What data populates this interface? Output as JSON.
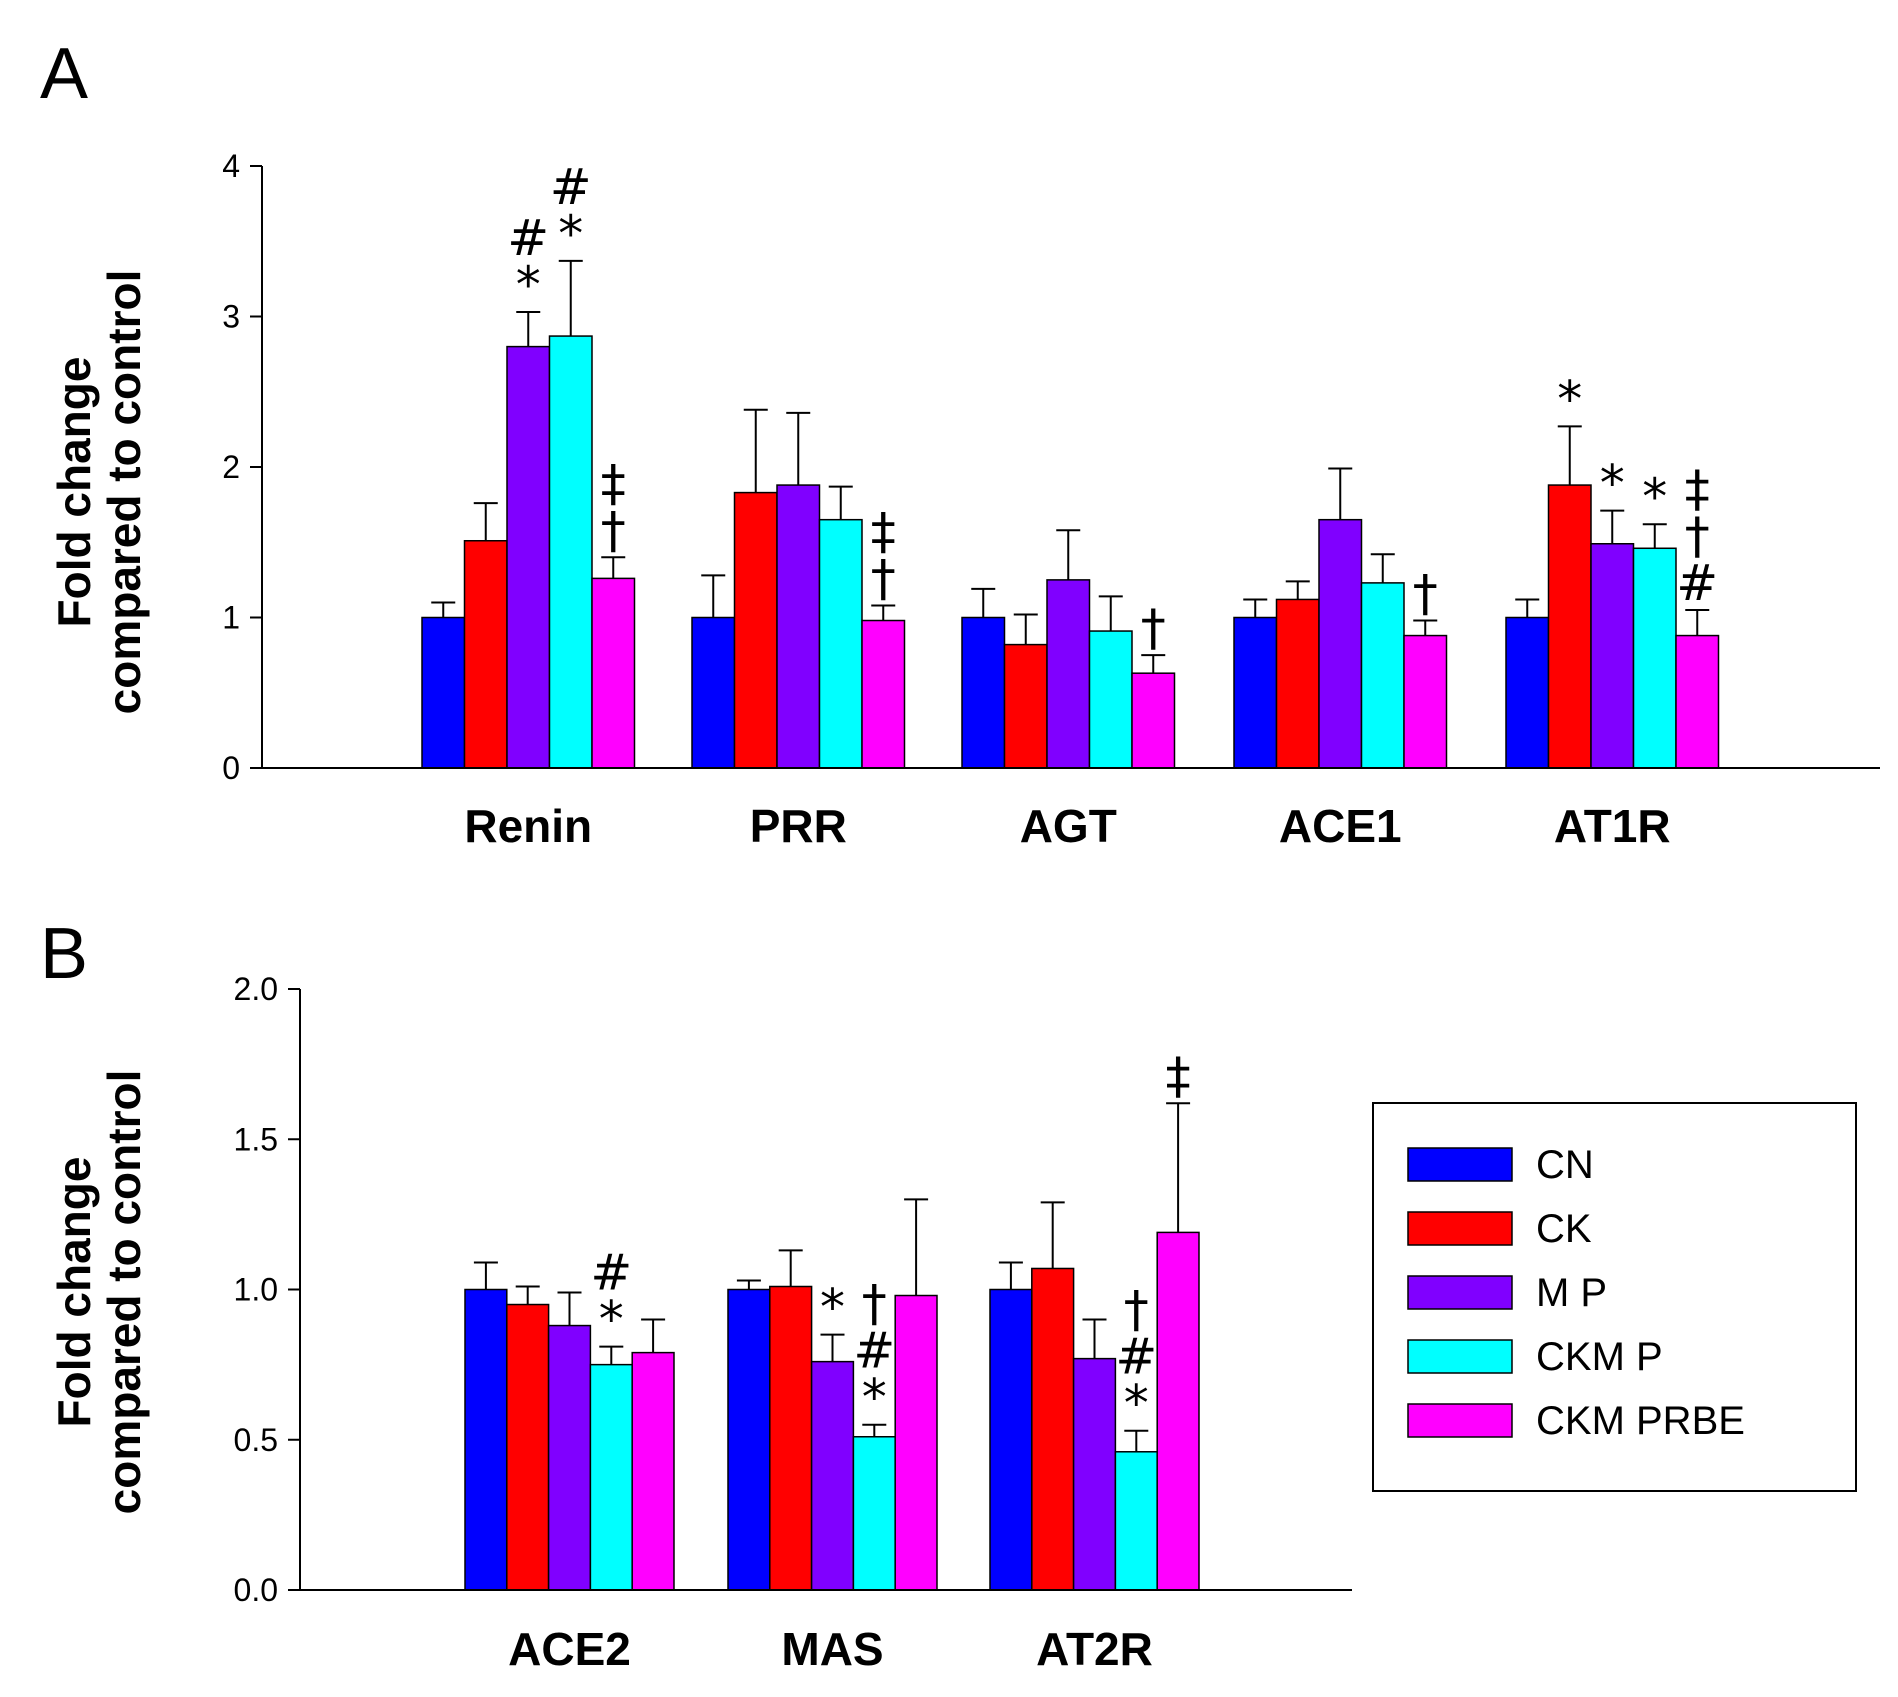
{
  "chart_data": [
    {
      "panel": "A",
      "type": "bar",
      "ylabel": [
        "Fold change",
        "compared to control"
      ],
      "ylim": [
        0,
        4
      ],
      "yticks": [
        0,
        1,
        2,
        3,
        4
      ],
      "ytick_labels": [
        "0",
        "1",
        "2",
        "3",
        "4"
      ],
      "categories": [
        "Renin",
        "PRR",
        "AGT",
        "ACE1",
        "AT1R"
      ],
      "series": [
        {
          "name": "CN",
          "values": [
            1.0,
            1.0,
            1.0,
            1.0,
            1.0
          ],
          "errors": [
            0.1,
            0.28,
            0.19,
            0.12,
            0.12
          ]
        },
        {
          "name": "CK",
          "values": [
            1.51,
            1.83,
            0.82,
            1.12,
            1.88
          ],
          "errors": [
            0.25,
            0.55,
            0.2,
            0.12,
            0.39
          ]
        },
        {
          "name": "MP",
          "values": [
            2.8,
            1.88,
            1.25,
            1.65,
            1.49
          ],
          "errors": [
            0.23,
            0.48,
            0.33,
            0.34,
            0.22
          ]
        },
        {
          "name": "CKMP",
          "values": [
            2.87,
            1.65,
            0.91,
            1.23,
            1.46
          ],
          "errors": [
            0.5,
            0.22,
            0.23,
            0.19,
            0.16
          ]
        },
        {
          "name": "CKMPRBE",
          "values": [
            1.26,
            0.98,
            0.63,
            0.88,
            0.88
          ],
          "errors": [
            0.14,
            0.1,
            0.12,
            0.1,
            0.17
          ]
        }
      ],
      "annotations": [
        {
          "category": "Renin",
          "series": "MP",
          "marks": [
            "#",
            "*"
          ]
        },
        {
          "category": "Renin",
          "series": "CKMP",
          "marks": [
            "#",
            "*"
          ]
        },
        {
          "category": "Renin",
          "series": "CKMPRBE",
          "marks": [
            "‡",
            "†"
          ]
        },
        {
          "category": "PRR",
          "series": "CKMPRBE",
          "marks": [
            "‡",
            "†"
          ]
        },
        {
          "category": "AGT",
          "series": "CKMPRBE",
          "marks": [
            "†"
          ]
        },
        {
          "category": "ACE1",
          "series": "CKMPRBE",
          "marks": [
            "†"
          ]
        },
        {
          "category": "AT1R",
          "series": "CK",
          "marks": [
            "*"
          ]
        },
        {
          "category": "AT1R",
          "series": "MP",
          "marks": [
            "*"
          ]
        },
        {
          "category": "AT1R",
          "series": "CKMP",
          "marks": [
            "*"
          ]
        },
        {
          "category": "AT1R",
          "series": "CKMPRBE",
          "marks": [
            "‡",
            "†",
            "#"
          ]
        }
      ]
    },
    {
      "panel": "B",
      "type": "bar",
      "ylabel": [
        "Fold change",
        "compared to control"
      ],
      "ylim": [
        0,
        2
      ],
      "yticks": [
        0,
        0.5,
        1,
        1.5,
        2
      ],
      "ytick_labels": [
        "0.0",
        "0.5",
        "1.0",
        "1.5",
        "2.0"
      ],
      "categories": [
        "ACE2",
        "MAS",
        "AT2R"
      ],
      "series": [
        {
          "name": "CN",
          "values": [
            1.0,
            1.0,
            1.0
          ],
          "errors": [
            0.09,
            0.03,
            0.09
          ]
        },
        {
          "name": "CK",
          "values": [
            0.95,
            1.01,
            1.07
          ],
          "errors": [
            0.06,
            0.12,
            0.22
          ]
        },
        {
          "name": "MP",
          "values": [
            0.88,
            0.76,
            0.77
          ],
          "errors": [
            0.11,
            0.09,
            0.13
          ]
        },
        {
          "name": "CKMP",
          "values": [
            0.75,
            0.51,
            0.46
          ],
          "errors": [
            0.06,
            0.04,
            0.07
          ]
        },
        {
          "name": "CKMPRBE",
          "values": [
            0.79,
            0.98,
            1.19
          ],
          "errors": [
            0.11,
            0.32,
            0.43
          ]
        }
      ],
      "annotations": [
        {
          "category": "ACE2",
          "series": "CKMP",
          "marks": [
            "#",
            "*"
          ]
        },
        {
          "category": "MAS",
          "series": "MP",
          "marks": [
            "*"
          ]
        },
        {
          "category": "MAS",
          "series": "CKMP",
          "marks": [
            "†",
            "#",
            "*"
          ]
        },
        {
          "category": "AT2R",
          "series": "CKMP",
          "marks": [
            "†",
            "#",
            "*"
          ]
        },
        {
          "category": "AT2R",
          "series": "CKMPRBE",
          "marks": [
            "‡"
          ]
        }
      ]
    }
  ],
  "legend": {
    "items": [
      {
        "label": "CN",
        "color": "#0000ff"
      },
      {
        "label": "CK",
        "color": "#ff0000"
      },
      {
        "label": "M P",
        "color": "#8000ff"
      },
      {
        "label": "CKM P",
        "color": "#00ffff"
      },
      {
        "label": "CKM PRBE",
        "color": "#ff00ff"
      }
    ]
  }
}
